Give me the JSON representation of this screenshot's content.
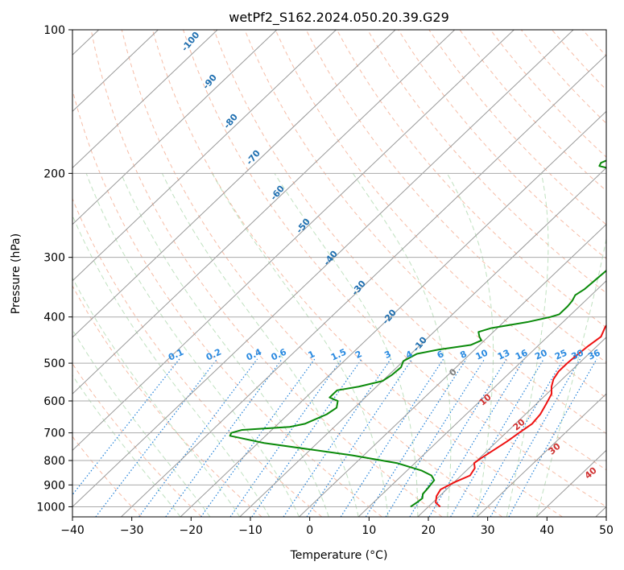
{
  "chart_data": {
    "type": "line",
    "title": "wetPf2_S162.2024.050.20.39.G29",
    "xlabel": "Temperature (°C)",
    "ylabel": "Pressure (hPa)",
    "xlim": [
      -40,
      50
    ],
    "ylim": [
      1050,
      100
    ],
    "y_scale": "log",
    "grid": true,
    "x_ticks": [
      "−40",
      "−30",
      "−20",
      "−10",
      "0",
      "10",
      "20",
      "30",
      "40",
      "50"
    ],
    "y_ticks": [
      "100",
      "200",
      "300",
      "400",
      "500",
      "600",
      "700",
      "800",
      "900",
      "1000"
    ],
    "series": [
      {
        "name": "",
        "color": "#ee1111",
        "points": [
          [
            22.0,
            1000
          ],
          [
            20.5,
            980
          ],
          [
            19.5,
            950
          ],
          [
            19.0,
            920
          ],
          [
            20.0,
            890
          ],
          [
            21.5,
            860
          ],
          [
            21.0,
            830
          ],
          [
            20.0,
            810
          ],
          [
            20.3,
            790
          ],
          [
            21.0,
            760
          ],
          [
            21.7,
            730
          ],
          [
            22.2,
            700
          ],
          [
            22.8,
            670
          ],
          [
            22.5,
            640
          ],
          [
            21.7,
            610
          ],
          [
            20.8,
            580
          ],
          [
            19.5,
            560
          ],
          [
            18.5,
            540
          ],
          [
            18.0,
            520
          ],
          [
            18.0,
            500
          ],
          [
            18.2,
            480
          ],
          [
            18.5,
            460
          ],
          [
            19.0,
            440
          ],
          [
            18.0,
            420
          ],
          [
            17.5,
            400
          ],
          [
            16.5,
            380
          ],
          [
            15.0,
            360
          ],
          [
            13.3,
            340
          ],
          [
            11.5,
            320
          ],
          [
            9.5,
            300
          ],
          [
            8.0,
            280
          ],
          [
            6.5,
            260
          ],
          [
            5.0,
            240
          ],
          [
            3.5,
            225
          ],
          [
            2.3,
            212
          ],
          [
            3.0,
            205
          ],
          [
            4.5,
            195
          ],
          [
            5.3,
            185
          ],
          [
            5.6,
            170
          ],
          [
            6.0,
            155
          ],
          [
            6.4,
            140
          ],
          [
            6.9,
            125
          ],
          [
            6.8,
            117
          ],
          [
            7.4,
            110
          ],
          [
            8.2,
            104
          ],
          [
            9.0,
            100
          ]
        ]
      },
      {
        "name": "",
        "color": "#0a8a0a",
        "points": [
          [
            17.0,
            1000
          ],
          [
            17.3,
            980
          ],
          [
            17.5,
            960
          ],
          [
            16.8,
            940
          ],
          [
            16.6,
            910
          ],
          [
            16.3,
            880
          ],
          [
            15.0,
            860
          ],
          [
            12.5,
            840
          ],
          [
            7.0,
            810
          ],
          [
            -2.0,
            780
          ],
          [
            -19.0,
            735
          ],
          [
            -26.0,
            710
          ],
          [
            -26.3,
            700
          ],
          [
            -25.0,
            690
          ],
          [
            -17.5,
            680
          ],
          [
            -15.5,
            670
          ],
          [
            -13.5,
            640
          ],
          [
            -13.0,
            620
          ],
          [
            -14.0,
            600
          ],
          [
            -16.0,
            590
          ],
          [
            -16.0,
            570
          ],
          [
            -13.0,
            560
          ],
          [
            -10.0,
            545
          ],
          [
            -9.5,
            530
          ],
          [
            -9.3,
            510
          ],
          [
            -10.0,
            495
          ],
          [
            -9.0,
            478
          ],
          [
            -6.0,
            468
          ],
          [
            -1.5,
            458
          ],
          [
            -0.5,
            448
          ],
          [
            -1.5,
            440
          ],
          [
            -2.5,
            430
          ],
          [
            -1.0,
            422
          ],
          [
            4.0,
            410
          ],
          [
            7.0,
            400
          ],
          [
            8.0,
            395
          ],
          [
            8.0,
            380
          ],
          [
            7.8,
            370
          ],
          [
            7.3,
            360
          ],
          [
            7.8,
            350
          ],
          [
            8.0,
            335
          ],
          [
            8.2,
            320
          ],
          [
            7.8,
            305
          ],
          [
            6.5,
            290
          ],
          [
            5.5,
            275
          ],
          [
            4.7,
            260
          ],
          [
            4.0,
            245
          ],
          [
            3.3,
            232
          ],
          [
            2.6,
            220
          ],
          [
            2.3,
            210
          ],
          [
            -1.0,
            205
          ],
          [
            -7.0,
            198
          ],
          [
            -11.5,
            193
          ],
          [
            -11.8,
            190
          ],
          [
            -10.0,
            183
          ],
          [
            -7.5,
            172
          ],
          [
            -9.0,
            165
          ],
          [
            -10.2,
            157
          ],
          [
            -9.5,
            148
          ],
          [
            -8.0,
            140
          ],
          [
            -6.0,
            132
          ],
          [
            -5.3,
            125
          ],
          [
            -4.5,
            115
          ],
          [
            -3.5,
            107
          ],
          [
            -1.5,
            100
          ]
        ]
      }
    ],
    "background_line_labels": {
      "dry_adiabats": [
        "-100",
        "-90",
        "-80",
        "-70",
        "-60",
        "-50",
        "-40",
        "-30",
        "-20",
        "-10",
        "0",
        "10",
        "20",
        "30",
        "40"
      ],
      "mixing_ratio": [
        "0.1",
        "0.2",
        "0.4",
        "0.6",
        "1",
        "1.5",
        "2",
        "3",
        "4",
        "6",
        "8",
        "10",
        "13",
        "16",
        "20",
        "25",
        "30",
        "36"
      ]
    }
  }
}
